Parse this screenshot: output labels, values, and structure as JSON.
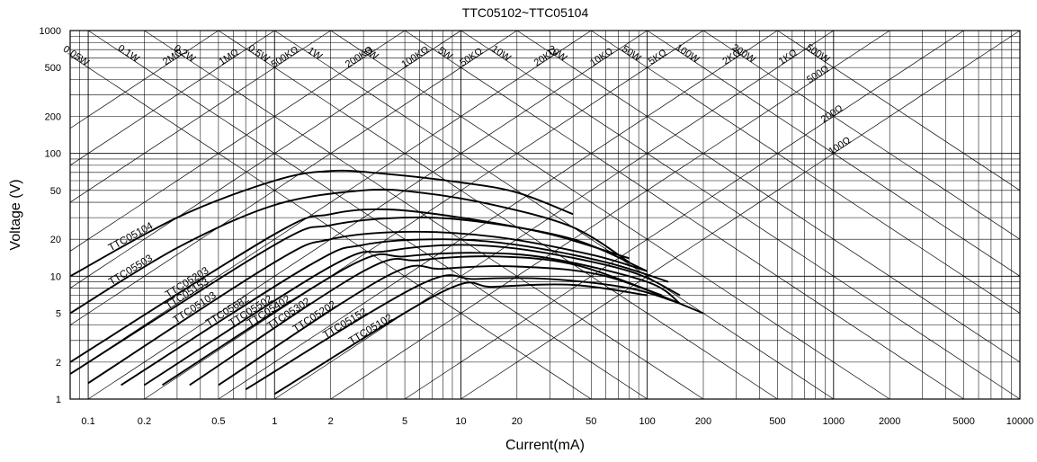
{
  "chart_data": {
    "type": "line",
    "title": "TTC05102~TTC05104",
    "xlabel": "Current(mA)",
    "ylabel": "Voltage  (V)",
    "xscale": "log",
    "yscale": "log",
    "xlim": [
      0.08,
      10000
    ],
    "ylim": [
      1,
      1000
    ],
    "grid": true,
    "x_ticks": [
      {
        "v": 0.1,
        "label": "0.1"
      },
      {
        "v": 0.2,
        "label": "0.2"
      },
      {
        "v": 0.5,
        "label": "0.5"
      },
      {
        "v": 1,
        "label": "1"
      },
      {
        "v": 2,
        "label": "2"
      },
      {
        "v": 5,
        "label": "5"
      },
      {
        "v": 10,
        "label": "10"
      },
      {
        "v": 20,
        "label": "20"
      },
      {
        "v": 50,
        "label": "50"
      },
      {
        "v": 100,
        "label": "100"
      },
      {
        "v": 200,
        "label": "200"
      },
      {
        "v": 500,
        "label": "500"
      },
      {
        "v": 1000,
        "label": "1000"
      },
      {
        "v": 2000,
        "label": "2000"
      },
      {
        "v": 5000,
        "label": "5000"
      },
      {
        "v": 10000,
        "label": "10000"
      }
    ],
    "y_ticks": [
      {
        "v": 1,
        "label": "1"
      },
      {
        "v": 2,
        "label": "2"
      },
      {
        "v": 5,
        "label": "5"
      },
      {
        "v": 10,
        "label": "10"
      },
      {
        "v": 20,
        "label": "20"
      },
      {
        "v": 50,
        "label": "50"
      },
      {
        "v": 100,
        "label": "100"
      },
      {
        "v": 200,
        "label": "200"
      },
      {
        "v": 500,
        "label": "500"
      },
      {
        "v": 1000,
        "label": "1000"
      }
    ],
    "power_lines": [
      {
        "label": "0.05W",
        "watts": 0.05
      },
      {
        "label": "0.1W",
        "watts": 0.1
      },
      {
        "label": "0.2W",
        "watts": 0.2
      },
      {
        "label": "0.5W",
        "watts": 0.5
      },
      {
        "label": "1W",
        "watts": 1
      },
      {
        "label": "2W",
        "watts": 2
      },
      {
        "label": "5W",
        "watts": 5
      },
      {
        "label": "10W",
        "watts": 10
      },
      {
        "label": "20W",
        "watts": 20
      },
      {
        "label": "50W",
        "watts": 50
      },
      {
        "label": "100W",
        "watts": 100
      },
      {
        "label": "200W",
        "watts": 200
      },
      {
        "label": "500W",
        "watts": 500
      }
    ],
    "resistance_lines": [
      {
        "label": "2MΩ",
        "ohms": 2000000
      },
      {
        "label": "1MΩ",
        "ohms": 1000000
      },
      {
        "label": "500KΩ",
        "ohms": 500000
      },
      {
        "label": "200KΩ",
        "ohms": 200000
      },
      {
        "label": "100KΩ",
        "ohms": 100000
      },
      {
        "label": "50KΩ",
        "ohms": 50000
      },
      {
        "label": "20KΩ",
        "ohms": 20000
      },
      {
        "label": "10KΩ",
        "ohms": 10000
      },
      {
        "label": "5KΩ",
        "ohms": 5000
      },
      {
        "label": "2KΩ",
        "ohms": 2000
      },
      {
        "label": "1KΩ",
        "ohms": 1000
      },
      {
        "label": "500Ω",
        "ohms": 500
      },
      {
        "label": "200Ω",
        "ohms": 200
      },
      {
        "label": "100Ω",
        "ohms": 100
      }
    ],
    "series": [
      {
        "name": "TTC05104",
        "x": [
          0.08,
          0.3,
          1,
          2,
          4,
          10,
          20,
          40
        ],
        "y": [
          10,
          30,
          60,
          72,
          68,
          58,
          48,
          32
        ]
      },
      {
        "name": "TTC05503",
        "x": [
          0.08,
          0.3,
          1,
          3,
          6,
          15,
          40,
          80
        ],
        "y": [
          5,
          17,
          38,
          50,
          48,
          38,
          25,
          13
        ]
      },
      {
        "name": "TTC05203",
        "x": [
          0.08,
          1,
          2,
          4,
          10,
          30,
          80
        ],
        "y": [
          2,
          22,
          32,
          35,
          30,
          22,
          14
        ]
      },
      {
        "name": "TTC05153",
        "x": [
          0.08,
          1,
          2,
          5,
          12,
          40,
          100
        ],
        "y": [
          1.6,
          18,
          26,
          30,
          28,
          20,
          11
        ]
      },
      {
        "name": "TTC05103",
        "x": [
          0.1,
          1,
          2,
          5,
          15,
          50,
          100
        ],
        "y": [
          1.35,
          13,
          20,
          23,
          21,
          15,
          11
        ]
      },
      {
        "name": "TTC05682",
        "x": [
          0.15,
          1.5,
          3,
          8,
          20,
          60,
          130
        ],
        "y": [
          1.3,
          12,
          18,
          20,
          18,
          13,
          9
        ]
      },
      {
        "name": "TTC05502",
        "x": [
          0.2,
          2,
          4,
          10,
          25,
          80,
          150
        ],
        "y": [
          1.3,
          12,
          16,
          18,
          16,
          11,
          7
        ]
      },
      {
        "name": "TTC05402",
        "x": [
          0.25,
          2.5,
          5,
          12,
          30,
          100,
          150
        ],
        "y": [
          1.3,
          12,
          14.5,
          15.5,
          14,
          9,
          6
        ]
      },
      {
        "name": "TTC05302",
        "x": [
          0.35,
          3,
          6,
          15,
          40,
          120
        ],
        "y": [
          1.3,
          11,
          13.5,
          14.5,
          12.5,
          7
        ]
      },
      {
        "name": "TTC05202",
        "x": [
          0.5,
          4,
          8,
          20,
          60,
          200
        ],
        "y": [
          1.3,
          10,
          11.5,
          12,
          10,
          5
        ]
      },
      {
        "name": "TTC05152",
        "x": [
          0.7,
          6,
          12,
          30,
          80,
          150
        ],
        "y": [
          1.2,
          8.5,
          9.5,
          9.5,
          8,
          6
        ]
      },
      {
        "name": "TTC05102",
        "x": [
          1,
          8,
          15,
          40,
          100
        ],
        "y": [
          1.1,
          7.5,
          8.2,
          8.5,
          7
        ]
      }
    ]
  }
}
